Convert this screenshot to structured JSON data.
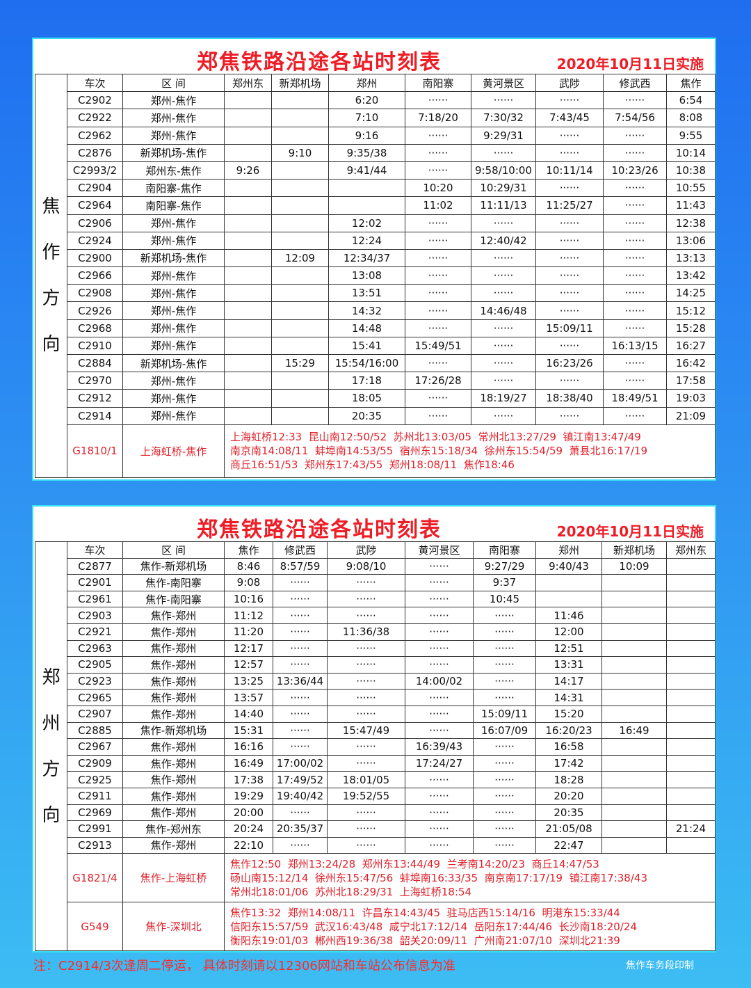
{
  "top": {
    "title": "郑焦铁路沿途各站时刻表",
    "date": "2020年10月11日实施",
    "direction": [
      "焦",
      "作",
      "方",
      "向"
    ],
    "headers": [
      "车次",
      "区 间",
      "郑州东",
      "新郑机场",
      "郑州",
      "南阳寨",
      "黄河景区",
      "武陟",
      "修武西",
      "焦作"
    ],
    "rows": [
      [
        "C2902",
        "郑州-焦作",
        "",
        "",
        "6:20",
        "······",
        "······",
        "······",
        "······",
        "6:54"
      ],
      [
        "C2922",
        "郑州-焦作",
        "",
        "",
        "7:10",
        "7:18/20",
        "7:30/32",
        "7:43/45",
        "7:54/56",
        "8:08"
      ],
      [
        "C2962",
        "郑州-焦作",
        "",
        "",
        "9:16",
        "······",
        "9:29/31",
        "······",
        "······",
        "9:55"
      ],
      [
        "C2876",
        "新郑机场-焦作",
        "",
        "9:10",
        "9:35/38",
        "······",
        "······",
        "······",
        "······",
        "10:14"
      ],
      [
        "C2993/2",
        "郑州东-焦作",
        "9:26",
        "",
        "9:41/44",
        "······",
        "9:58/10:00",
        "10:11/14",
        "10:23/26",
        "10:38"
      ],
      [
        "C2904",
        "南阳寨-焦作",
        "",
        "",
        "",
        "10:20",
        "10:29/31",
        "······",
        "······",
        "10:55"
      ],
      [
        "C2964",
        "南阳寨-焦作",
        "",
        "",
        "",
        "11:02",
        "11:11/13",
        "11:25/27",
        "······",
        "11:43"
      ],
      [
        "C2906",
        "郑州-焦作",
        "",
        "",
        "12:02",
        "······",
        "······",
        "······",
        "······",
        "12:38"
      ],
      [
        "C2924",
        "郑州-焦作",
        "",
        "",
        "12:24",
        "······",
        "12:40/42",
        "······",
        "······",
        "13:06"
      ],
      [
        "C2900",
        "新郑机场-焦作",
        "",
        "12:09",
        "12:34/37",
        "······",
        "······",
        "······",
        "······",
        "13:13"
      ],
      [
        "C2966",
        "郑州-焦作",
        "",
        "",
        "13:08",
        "······",
        "······",
        "······",
        "······",
        "13:42"
      ],
      [
        "C2908",
        "郑州-焦作",
        "",
        "",
        "13:51",
        "······",
        "······",
        "······",
        "······",
        "14:25"
      ],
      [
        "C2926",
        "郑州-焦作",
        "",
        "",
        "14:32",
        "······",
        "14:46/48",
        "······",
        "······",
        "15:12"
      ],
      [
        "C2968",
        "郑州-焦作",
        "",
        "",
        "14:48",
        "······",
        "······",
        "15:09/11",
        "······",
        "15:28"
      ],
      [
        "C2910",
        "郑州-焦作",
        "",
        "",
        "15:41",
        "15:49/51",
        "······",
        "······",
        "16:13/15",
        "16:27"
      ],
      [
        "C2884",
        "新郑机场-焦作",
        "",
        "15:29",
        "15:54/16:00",
        "······",
        "······",
        "16:23/26",
        "······",
        "16:42"
      ],
      [
        "C2970",
        "郑州-焦作",
        "",
        "",
        "17:18",
        "17:26/28",
        "······",
        "······",
        "······",
        "17:58"
      ],
      [
        "C2912",
        "郑州-焦作",
        "",
        "",
        "18:05",
        "······",
        "18:19/27",
        "18:38/40",
        "18:49/51",
        "19:03"
      ],
      [
        "C2914",
        "郑州-焦作",
        "",
        "",
        "20:35",
        "······",
        "······",
        "······",
        "······",
        "21:09"
      ]
    ],
    "express": [
      {
        "train": "G1810/1",
        "route": "上海虹桥-焦作",
        "lines": [
          "上海虹桥12:33  昆山南12:50/52  苏州北13:03/05  常州北13:27/29  镇江南13:47/49",
          "南京南14:08/11  蚌埠南14:53/55  宿州东15:18/34  徐州东15:54/59  萧县北16:17/19",
          "商丘16:51/53  郑州东17:43/55  郑州18:08/11  焦作18:46"
        ]
      }
    ]
  },
  "bottom": {
    "title": "郑焦铁路沿途各站时刻表",
    "date": "2020年10月11日实施",
    "direction": [
      "郑",
      "州",
      "方",
      "向"
    ],
    "headers": [
      "车次",
      "区 间",
      "焦作",
      "修武西",
      "武陟",
      "黄河景区",
      "南阳寨",
      "郑州",
      "新郑机场",
      "郑州东"
    ],
    "rows": [
      [
        "C2877",
        "焦作-新郑机场",
        "8:46",
        "8:57/59",
        "9:08/10",
        "······",
        "9:27/29",
        "9:40/43",
        "10:09",
        ""
      ],
      [
        "C2901",
        "焦作-南阳寨",
        "9:08",
        "······",
        "······",
        "······",
        "9:37",
        "",
        "",
        ""
      ],
      [
        "C2961",
        "焦作-南阳寨",
        "10:16",
        "······",
        "······",
        "······",
        "10:45",
        "",
        "",
        ""
      ],
      [
        "C2903",
        "焦作-郑州",
        "11:12",
        "······",
        "······",
        "······",
        "······",
        "11:46",
        "",
        ""
      ],
      [
        "C2921",
        "焦作-郑州",
        "11:20",
        "······",
        "11:36/38",
        "······",
        "······",
        "12:00",
        "",
        ""
      ],
      [
        "C2963",
        "焦作-郑州",
        "12:17",
        "······",
        "······",
        "······",
        "······",
        "12:51",
        "",
        ""
      ],
      [
        "C2905",
        "焦作-郑州",
        "12:57",
        "······",
        "······",
        "······",
        "······",
        "13:31",
        "",
        ""
      ],
      [
        "C2923",
        "焦作-郑州",
        "13:25",
        "13:36/44",
        "······",
        "14:00/02",
        "······",
        "14:17",
        "",
        ""
      ],
      [
        "C2965",
        "焦作-郑州",
        "13:57",
        "······",
        "······",
        "······",
        "······",
        "14:31",
        "",
        ""
      ],
      [
        "C2907",
        "焦作-郑州",
        "14:40",
        "······",
        "······",
        "······",
        "15:09/11",
        "15:20",
        "",
        ""
      ],
      [
        "C2885",
        "焦作-新郑机场",
        "15:31",
        "······",
        "15:47/49",
        "······",
        "16:07/09",
        "16:20/23",
        "16:49",
        ""
      ],
      [
        "C2967",
        "焦作-郑州",
        "16:16",
        "······",
        "······",
        "16:39/43",
        "······",
        "16:58",
        "",
        ""
      ],
      [
        "C2909",
        "焦作-郑州",
        "16:49",
        "17:00/02",
        "······",
        "17:24/27",
        "······",
        "17:42",
        "",
        ""
      ],
      [
        "C2925",
        "焦作-郑州",
        "17:38",
        "17:49/52",
        "18:01/05",
        "······",
        "······",
        "18:28",
        "",
        ""
      ],
      [
        "C2911",
        "焦作-郑州",
        "19:29",
        "19:40/42",
        "19:52/55",
        "······",
        "······",
        "20:20",
        "",
        ""
      ],
      [
        "C2969",
        "焦作-郑州",
        "20:00",
        "······",
        "······",
        "······",
        "······",
        "20:35",
        "",
        ""
      ],
      [
        "C2991",
        "焦作-郑州东",
        "20:24",
        "20:35/37",
        "······",
        "······",
        "······",
        "21:05/08",
        "",
        "21:24"
      ],
      [
        "C2913",
        "焦作-郑州",
        "22:10",
        "······",
        "······",
        "······",
        "······",
        "22:47",
        "",
        ""
      ]
    ],
    "express": [
      {
        "train": "G1821/4",
        "route": "焦作-上海虹桥",
        "lines": [
          "焦作12:50  郑州13:24/28  郑州东13:44/49  兰考南14:20/23  商丘14:47/53",
          "砀山南15:12/14  徐州东15:47/56  蚌埠南16:33/35  南京南17:17/19  镇江南17:38/43",
          "常州北18:01/06  苏州北18:29/31  上海虹桥18:54"
        ]
      },
      {
        "train": "G549",
        "route": "焦作-深圳北",
        "lines": [
          "焦作13:32  郑州14:08/11  许昌东14:43/45  驻马店西15:14/16  明港东15:33/44",
          "信阳东15:57/59  武汉16:43/48  咸宁北17:12/14  岳阳东17:44/46  长沙南18:20/24",
          "衡阳东19:01/03  郴州西19:36/38  韶关20:09/11  广州南21:07/10  深圳北21:39"
        ]
      }
    ]
  },
  "footer": {
    "note": "注：C2914/3次逢周二停运， 具体时刻请以12306网站和车站公布信息为准",
    "printer": "焦作车务段印制"
  },
  "colors": {
    "title": "#ee1c25",
    "border": "#37e0f0",
    "background": "#1f6ef0"
  }
}
